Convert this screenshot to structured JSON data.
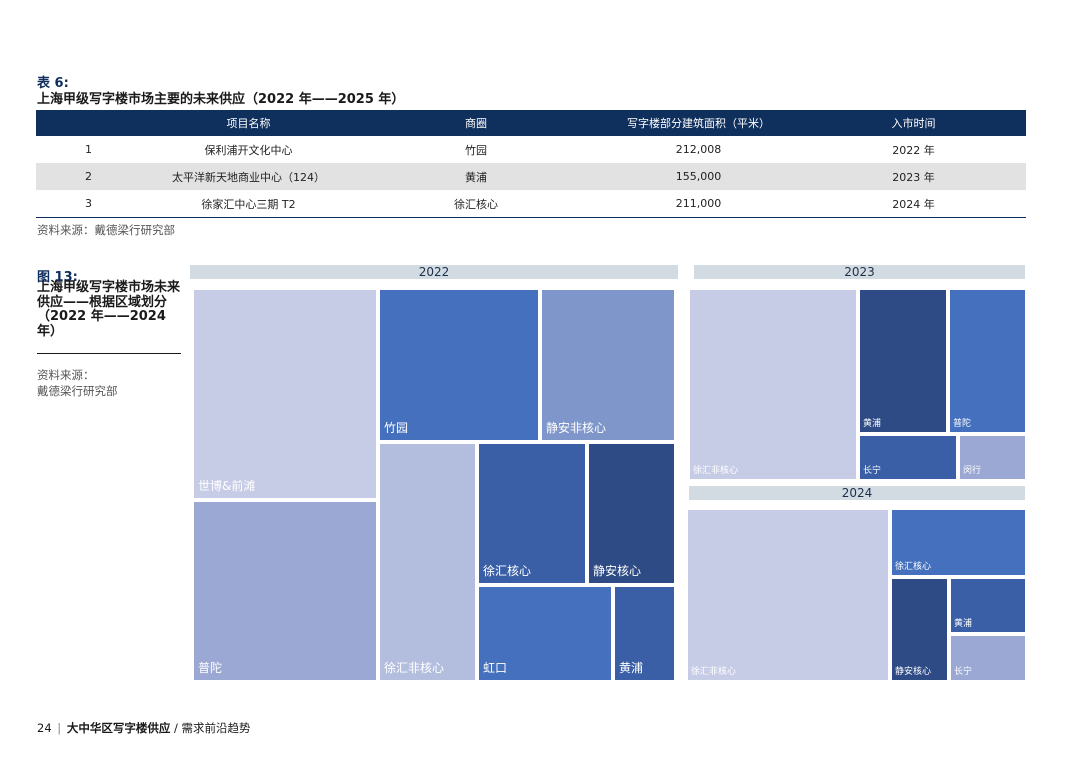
{
  "table": {
    "label": "表 6:",
    "title": "上海甲级写字楼市场主要的未来供应（2022 年——2025 年）",
    "headers": [
      "",
      "项目名称",
      "商圈",
      "写字楼部分建筑面积（平米）",
      "入市时间"
    ],
    "rows": [
      [
        "1",
        "保利浦开文化中心",
        "竹园",
        "212,008",
        "2022 年"
      ],
      [
        "2",
        "太平洋新天地商业中心（124）",
        "黄浦",
        "155,000",
        "2023 年"
      ],
      [
        "3",
        "徐家汇中心三期 T2",
        "徐汇核心",
        "211,000",
        "2024 年"
      ]
    ],
    "source": "资料来源：戴德梁行研究部"
  },
  "figure": {
    "label": "图 13:",
    "title": "上海甲级写字楼市场未来供应——根据区域划分（2022 年——2024 年）",
    "source_label": "资料来源：",
    "source_name": "戴德梁行研究部"
  },
  "treemap": {
    "y2022": {
      "year": "2022",
      "tiles": [
        "世博&前滩",
        "普陀",
        "竹园",
        "静安非核心",
        "徐汇非核心",
        "徐汇核心",
        "静安核心",
        "虹口",
        "黄浦"
      ]
    },
    "y2023": {
      "year": "2023",
      "tiles": [
        "徐汇非核心",
        "黄浦",
        "普陀",
        "长宁",
        "闵行"
      ]
    },
    "y2024": {
      "year": "2024",
      "tiles": [
        "徐汇非核心",
        "徐汇核心",
        "静安核心",
        "黄浦",
        "长宁"
      ]
    }
  },
  "footer": {
    "page": "24",
    "separator": "|",
    "brand": "大中华区写字楼供应",
    "subtitle": "/ 需求前沿趋势"
  },
  "colors": {
    "navy": "#0f2f5c",
    "tile_lightest": "#c6cbe6",
    "tile_light": "#b3bedf",
    "tile_mid": "#9aa8d3",
    "tile_blue": "#7f96cb",
    "tile_bright": "#4470be",
    "tile_dark": "#3a5fa6",
    "tile_darkest": "#2e4b85"
  }
}
